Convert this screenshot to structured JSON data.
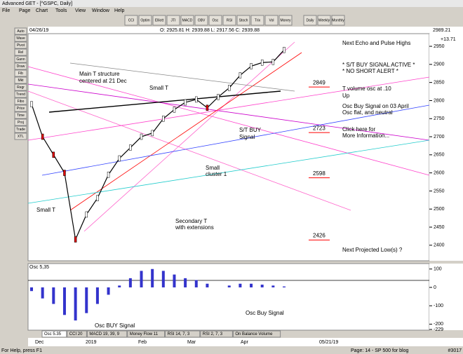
{
  "window": {
    "title": "Advanced GET - [^GSPC, Daily]"
  },
  "menu": [
    "File",
    "Page",
    "Chart",
    "Tools",
    "View",
    "Window",
    "Help"
  ],
  "toolbar": [
    "CCI",
    "Optim",
    "Elliott",
    "JTI",
    "MACD",
    "OBV",
    "Osc",
    "RSI",
    "Stoch",
    "Trix",
    "Vol",
    "Money",
    "Daily",
    "Weekly",
    "Monthly"
  ],
  "side_tools": [
    "Auto",
    "Wave",
    "Pivot",
    "Rel",
    "Gann",
    "Draw",
    "Fib",
    "Mkt",
    "Regr",
    "Trend",
    "Fibo",
    "Price",
    "Time",
    "Proj",
    "Trade",
    "XTL"
  ],
  "info": {
    "date": "04/26/19",
    "ohlc": "O: 2925.81   H: 2939.88   L: 2917.56   C: 2939.88",
    "last": "2989.21",
    "change": "+13.71"
  },
  "price_chart": {
    "type": "line",
    "ylim": [
      2357,
      2985
    ],
    "yticks": [
      2400,
      2450,
      2500,
      2550,
      2600,
      2650,
      2700,
      2750,
      2800,
      2850,
      2900,
      2950
    ],
    "closes": [
      2790,
      2700,
      2650,
      2600,
      2416,
      2485,
      2530,
      2595,
      2640,
      2670,
      2700,
      2710,
      2750,
      2775,
      2795,
      2803,
      2780,
      2810,
      2835,
      2870,
      2895,
      2905,
      2907,
      2940
    ],
    "color": "#000000",
    "levels": [
      {
        "value": 2849,
        "label": "2849"
      },
      {
        "value": 2723,
        "label": "2723"
      },
      {
        "value": 2598,
        "label": "2598"
      },
      {
        "value": 2426,
        "label": "2426"
      }
    ]
  },
  "annotations": {
    "echo": "Next Echo and Pulse Highs",
    "buy_active": "* S/T BUY SIGNAL ACTIVE *",
    "no_short": "* NO SHORT ALERT *",
    "tvol1": "T volume osc at .10",
    "tvol2": "Up",
    "osc1": "Osc Buy Signal on 03 April",
    "osc2": "Osc flat, and neutral",
    "click1": "Click here for",
    "click2": "More Information...",
    "main1": "Main T structure",
    "main2": "centered at 21 Dec",
    "smallt1": "Small T",
    "stbuy1": "S/T BUY",
    "stbuy2": "Signal",
    "cluster1": "Small",
    "cluster2": "cluster 1",
    "smallt2": "Small T",
    "sec1": "Secondary  T",
    "sec2": "with extensions",
    "proj": "Next Projected Low(s) ?"
  },
  "oscillator": {
    "type": "bar",
    "label": "Osc 5,35",
    "ylim": [
      -229,
      122
    ],
    "yticks": [
      100,
      0,
      -100,
      -200,
      -229
    ],
    "values": [
      -20,
      -60,
      -90,
      -150,
      -180,
      -140,
      -90,
      -40,
      10,
      50,
      90,
      100,
      90,
      70,
      50,
      40,
      20,
      0,
      10,
      20,
      20,
      15,
      10,
      5
    ],
    "color": "#3333cc",
    "notes": [
      "Osc BUY Signal",
      "Osc Buy Signal"
    ]
  },
  "tabs": [
    "Osc 5.35",
    "CCI 20",
    "MACD 19, 39, 9",
    "Money Flow 11",
    "RSI 14, 7, 3",
    "RSI 2, 7, 3",
    "On Balance Volume"
  ],
  "dates": [
    "Dec",
    "2019",
    "Feb",
    "Mar",
    "Apr",
    "05/21/19"
  ],
  "status": [
    "For Help, press F1",
    "Page: 14 - SP 500 for blog",
    "#3017"
  ]
}
